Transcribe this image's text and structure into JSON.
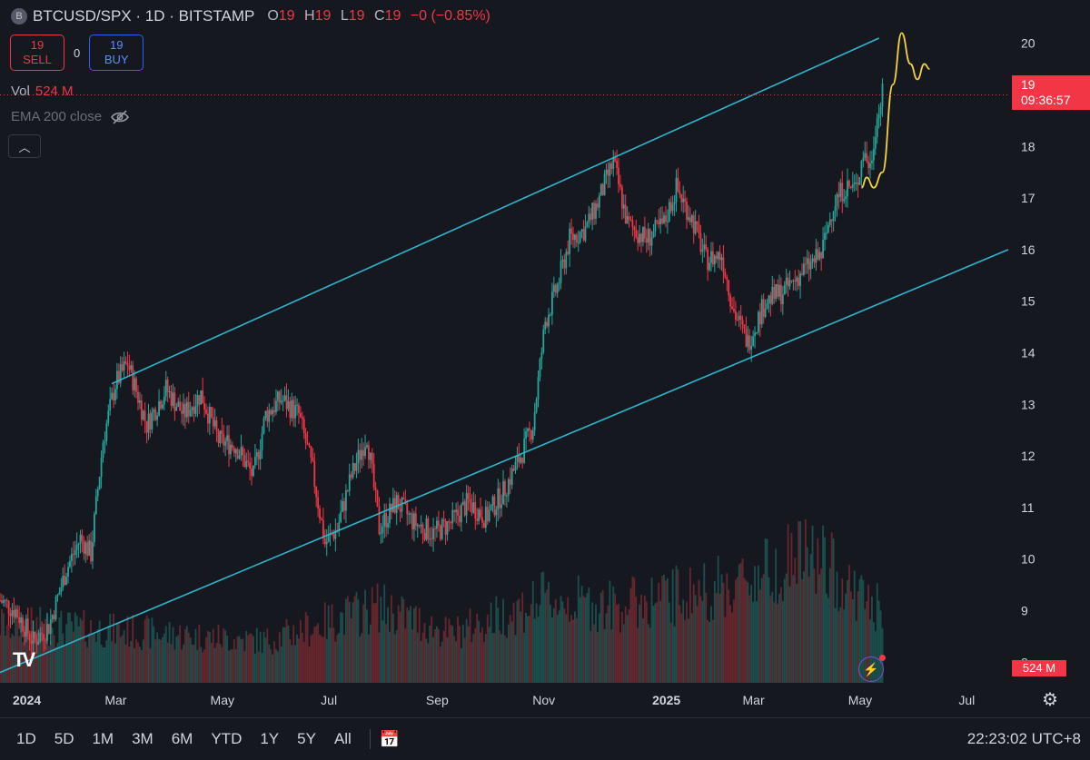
{
  "header": {
    "symbol_badge": "B",
    "symbol": "BTCUSD/SPX · 1D · BITSTAMP",
    "ohlc": [
      {
        "key": "O",
        "value": "19"
      },
      {
        "key": "H",
        "value": "19"
      },
      {
        "key": "L",
        "value": "19"
      },
      {
        "key": "C",
        "value": "19"
      }
    ],
    "change": "−0 (−0.85%)"
  },
  "trade": {
    "sell_price": "19",
    "sell_label": "SELL",
    "spread": "0",
    "buy_price": "19",
    "buy_label": "BUY"
  },
  "volume_legend": {
    "label": "Vol",
    "value": "524 M"
  },
  "ema_legend": {
    "label": "EMA 200 close",
    "icon": "eye-off-icon"
  },
  "price_tag": {
    "price": "19",
    "countdown": "09:36:57"
  },
  "volume_tag": "524 M",
  "logo": "TV",
  "bottom_bar": {
    "ranges": [
      "1D",
      "5D",
      "1M",
      "3M",
      "6M",
      "YTD",
      "1Y",
      "5Y",
      "All"
    ],
    "clock": "22:23:02 UTC+8"
  },
  "colors": {
    "up": "#26a69a",
    "down": "#f23645",
    "channel": "#2fb6cf",
    "projection": "#f5d142",
    "background": "#161820"
  },
  "chart_data": {
    "type": "candlestick",
    "title": "",
    "x_range": [
      "2024-01-01",
      "2025-07-31"
    ],
    "x_tick_labels": [
      {
        "date": "2024-01-01",
        "label": "2024",
        "bold": true
      },
      {
        "date": "2024-03-01",
        "label": "Mar"
      },
      {
        "date": "2024-05-01",
        "label": "May"
      },
      {
        "date": "2024-07-01",
        "label": "Jul"
      },
      {
        "date": "2024-09-01",
        "label": "Sep"
      },
      {
        "date": "2024-11-01",
        "label": "Nov"
      },
      {
        "date": "2025-01-01",
        "label": "2025",
        "bold": true
      },
      {
        "date": "2025-03-01",
        "label": "Mar"
      },
      {
        "date": "2025-05-01",
        "label": "May"
      },
      {
        "date": "2025-07-01",
        "label": "Jul"
      }
    ],
    "ylim": [
      7.6,
      20.4
    ],
    "y_ticks": [
      8,
      9,
      10,
      11,
      12,
      13,
      14,
      15,
      16,
      17,
      18,
      19,
      20
    ],
    "close_path": [
      [
        "2024-01-01",
        9.2
      ],
      [
        "2024-01-10",
        9.0
      ],
      [
        "2024-01-20",
        8.4
      ],
      [
        "2024-01-29",
        8.7
      ],
      [
        "2024-02-08",
        9.8
      ],
      [
        "2024-02-16",
        10.4
      ],
      [
        "2024-02-22",
        10.1
      ],
      [
        "2024-02-29",
        12.3
      ],
      [
        "2024-03-07",
        13.4
      ],
      [
        "2024-03-14",
        13.8
      ],
      [
        "2024-03-25",
        12.6
      ],
      [
        "2024-04-05",
        13.3
      ],
      [
        "2024-04-15",
        12.8
      ],
      [
        "2024-04-25",
        13.2
      ],
      [
        "2024-05-05",
        12.3
      ],
      [
        "2024-05-15",
        12.2
      ],
      [
        "2024-05-25",
        11.6
      ],
      [
        "2024-06-01",
        12.8
      ],
      [
        "2024-06-10",
        13.1
      ],
      [
        "2024-06-20",
        12.8
      ],
      [
        "2024-06-28",
        11.7
      ],
      [
        "2024-07-05",
        10.3
      ],
      [
        "2024-07-12",
        10.6
      ],
      [
        "2024-07-20",
        11.6
      ],
      [
        "2024-07-29",
        12.4
      ],
      [
        "2024-08-05",
        10.6
      ],
      [
        "2024-08-15",
        11.1
      ],
      [
        "2024-08-25",
        10.7
      ],
      [
        "2024-09-05",
        10.5
      ],
      [
        "2024-09-15",
        10.7
      ],
      [
        "2024-09-25",
        11.1
      ],
      [
        "2024-10-05",
        10.8
      ],
      [
        "2024-10-15",
        11.3
      ],
      [
        "2024-10-25",
        12.0
      ],
      [
        "2024-11-01",
        12.6
      ],
      [
        "2024-11-08",
        14.6
      ],
      [
        "2024-11-15",
        15.3
      ],
      [
        "2024-11-22",
        16.2
      ],
      [
        "2024-12-01",
        16.4
      ],
      [
        "2024-12-08",
        16.9
      ],
      [
        "2024-12-17",
        17.7
      ],
      [
        "2024-12-25",
        16.5
      ],
      [
        "2025-01-05",
        16.2
      ],
      [
        "2025-01-15",
        16.5
      ],
      [
        "2025-01-22",
        17.2
      ],
      [
        "2025-01-31",
        16.6
      ],
      [
        "2025-02-08",
        15.8
      ],
      [
        "2025-02-17",
        15.9
      ],
      [
        "2025-02-24",
        14.8
      ],
      [
        "2025-03-04",
        14.2
      ],
      [
        "2025-03-14",
        15.0
      ],
      [
        "2025-03-25",
        15.2
      ],
      [
        "2025-04-05",
        15.6
      ],
      [
        "2025-04-15",
        15.9
      ],
      [
        "2025-04-22",
        16.9
      ],
      [
        "2025-04-28",
        17.2
      ],
      [
        "2025-05-05",
        17.2
      ],
      [
        "2025-05-09",
        17.9
      ],
      [
        "2025-05-13",
        17.6
      ],
      [
        "2025-05-16",
        18.4
      ],
      [
        "2025-05-20",
        19.0
      ]
    ],
    "volume_range": [
      0,
      1
    ],
    "volume_path": [
      [
        "2024-01-01",
        0.42
      ],
      [
        "2024-03-01",
        0.38
      ],
      [
        "2024-06-01",
        0.3
      ],
      [
        "2024-08-05",
        0.55
      ],
      [
        "2024-09-15",
        0.35
      ],
      [
        "2024-11-08",
        0.6
      ],
      [
        "2024-12-17",
        0.55
      ],
      [
        "2025-02-24",
        0.7
      ],
      [
        "2025-04-07",
        0.95
      ],
      [
        "2025-05-20",
        0.5
      ]
    ],
    "channel_upper": [
      [
        "2024-03-05",
        13.4
      ],
      [
        "2025-05-18",
        20.1
      ]
    ],
    "channel_lower": [
      [
        "2024-01-01",
        7.8
      ],
      [
        "2025-07-31",
        16.0
      ]
    ],
    "projection": [
      [
        "2025-05-08",
        17.2
      ],
      [
        "2025-05-11",
        17.4
      ],
      [
        "2025-05-15",
        17.2
      ],
      [
        "2025-05-20",
        17.5
      ],
      [
        "2025-05-26",
        19.2
      ],
      [
        "2025-05-31",
        20.2
      ],
      [
        "2025-06-05",
        19.6
      ],
      [
        "2025-06-09",
        19.3
      ],
      [
        "2025-06-13",
        19.6
      ],
      [
        "2025-06-16",
        19.5
      ]
    ],
    "last_price": 19
  }
}
